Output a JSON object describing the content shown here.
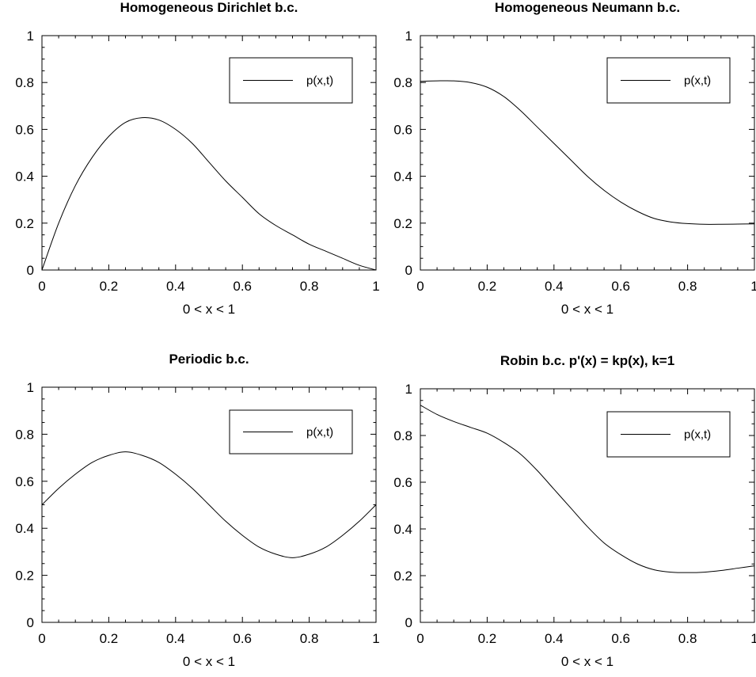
{
  "chart_data": [
    {
      "type": "line",
      "title": "Homogeneous Dirichlet b.c.",
      "xlabel": "0 < x < 1",
      "ylabel": "",
      "xlim": [
        0,
        1
      ],
      "ylim": [
        0,
        1
      ],
      "xticks": [
        "0",
        "0.2",
        "0.4",
        "0.6",
        "0.8",
        "1"
      ],
      "yticks": [
        "0",
        "0.2",
        "0.4",
        "0.6",
        "0.8",
        "1"
      ],
      "legend": {
        "position": "top-right",
        "entries": [
          "p(x,t)"
        ]
      },
      "grid": false,
      "series": [
        {
          "name": "p(x,t)",
          "x": [
            0,
            0.05,
            0.1,
            0.15,
            0.2,
            0.25,
            0.3,
            0.35,
            0.4,
            0.45,
            0.5,
            0.55,
            0.6,
            0.65,
            0.7,
            0.75,
            0.8,
            0.85,
            0.9,
            0.95,
            1
          ],
          "y": [
            0,
            0.2,
            0.36,
            0.48,
            0.57,
            0.63,
            0.65,
            0.64,
            0.6,
            0.54,
            0.46,
            0.38,
            0.31,
            0.24,
            0.19,
            0.15,
            0.11,
            0.08,
            0.05,
            0.02,
            0
          ]
        }
      ]
    },
    {
      "type": "line",
      "title": "Homogeneous Neumann b.c.",
      "xlabel": "0 < x < 1",
      "ylabel": "",
      "xlim": [
        0,
        1
      ],
      "ylim": [
        0,
        1
      ],
      "xticks": [
        "0",
        "0.2",
        "0.4",
        "0.6",
        "0.8",
        "1"
      ],
      "yticks": [
        "0",
        "0.2",
        "0.4",
        "0.6",
        "0.8",
        "1"
      ],
      "legend": {
        "position": "top-right",
        "entries": [
          "p(x,t)"
        ]
      },
      "grid": false,
      "series": [
        {
          "name": "p(x,t)",
          "x": [
            0,
            0.05,
            0.1,
            0.15,
            0.2,
            0.25,
            0.3,
            0.35,
            0.4,
            0.45,
            0.5,
            0.55,
            0.6,
            0.65,
            0.7,
            0.75,
            0.8,
            0.85,
            0.9,
            0.95,
            1
          ],
          "y": [
            0.805,
            0.807,
            0.807,
            0.8,
            0.78,
            0.74,
            0.68,
            0.61,
            0.54,
            0.47,
            0.4,
            0.34,
            0.29,
            0.25,
            0.22,
            0.205,
            0.198,
            0.195,
            0.195,
            0.196,
            0.197
          ]
        }
      ]
    },
    {
      "type": "line",
      "title": "Periodic b.c.",
      "xlabel": "0 < x < 1",
      "ylabel": "",
      "xlim": [
        0,
        1
      ],
      "ylim": [
        0,
        1
      ],
      "xticks": [
        "0",
        "0.2",
        "0.4",
        "0.6",
        "0.8",
        "1"
      ],
      "yticks": [
        "0",
        "0.2",
        "0.4",
        "0.6",
        "0.8",
        "1"
      ],
      "legend": {
        "position": "top-right",
        "entries": [
          "p(x,t)"
        ]
      },
      "grid": false,
      "series": [
        {
          "name": "p(x,t)",
          "x": [
            0,
            0.05,
            0.1,
            0.15,
            0.2,
            0.25,
            0.3,
            0.35,
            0.4,
            0.45,
            0.5,
            0.55,
            0.6,
            0.65,
            0.7,
            0.75,
            0.8,
            0.85,
            0.9,
            0.95,
            1
          ],
          "y": [
            0.5,
            0.57,
            0.63,
            0.68,
            0.71,
            0.725,
            0.71,
            0.68,
            0.63,
            0.57,
            0.5,
            0.43,
            0.37,
            0.32,
            0.29,
            0.275,
            0.29,
            0.32,
            0.37,
            0.43,
            0.5
          ]
        }
      ]
    },
    {
      "type": "line",
      "title": "Robin b.c. p'(x) = kp(x), k=1",
      "xlabel": "0 < x < 1",
      "ylabel": "",
      "xlim": [
        0,
        1
      ],
      "ylim": [
        0,
        1
      ],
      "xticks": [
        "0",
        "0.2",
        "0.4",
        "0.6",
        "0.8",
        "1"
      ],
      "yticks": [
        "0",
        "0.2",
        "0.4",
        "0.6",
        "0.8",
        "1"
      ],
      "legend": {
        "position": "top-right",
        "entries": [
          "p(x,t)"
        ]
      },
      "grid": false,
      "series": [
        {
          "name": "p(x,t)",
          "x": [
            0,
            0.05,
            0.1,
            0.15,
            0.2,
            0.25,
            0.3,
            0.35,
            0.4,
            0.45,
            0.5,
            0.55,
            0.6,
            0.65,
            0.7,
            0.75,
            0.8,
            0.85,
            0.9,
            0.95,
            1
          ],
          "y": [
            0.93,
            0.89,
            0.86,
            0.835,
            0.81,
            0.77,
            0.72,
            0.65,
            0.57,
            0.49,
            0.41,
            0.34,
            0.29,
            0.25,
            0.225,
            0.215,
            0.213,
            0.215,
            0.222,
            0.232,
            0.242
          ]
        }
      ]
    }
  ]
}
